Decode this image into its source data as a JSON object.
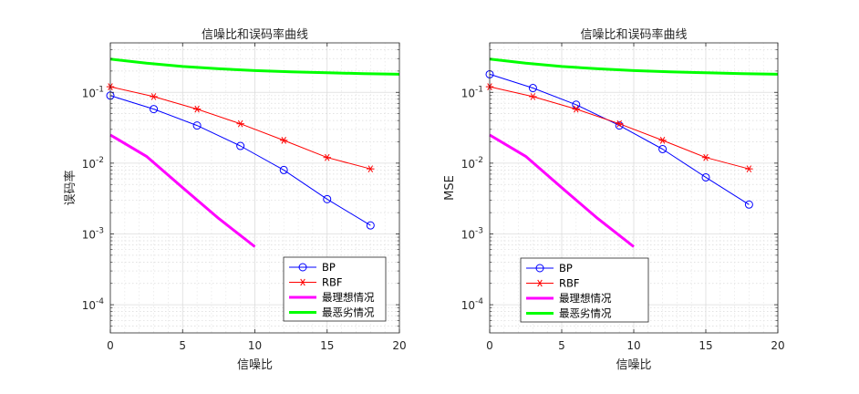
{
  "figure": {
    "background": "#ffffff"
  },
  "chart_data": [
    {
      "type": "line",
      "title": "信噪比和误码率曲线",
      "xlabel": "信噪比",
      "ylabel": "误码率",
      "xlim": [
        0,
        20
      ],
      "ylim": [
        4e-05,
        0.5
      ],
      "yscale": "log",
      "grid": "on (major and minor)",
      "legend_position": "bottom-right",
      "x_ticks": [
        0,
        5,
        10,
        15,
        20
      ],
      "y_ticks": [
        {
          "value": 0.0001,
          "base": "10",
          "exp": "-4"
        },
        {
          "value": 0.001,
          "base": "10",
          "exp": "-3"
        },
        {
          "value": 0.01,
          "base": "10",
          "exp": "-2"
        },
        {
          "value": 0.1,
          "base": "10",
          "exp": "-1"
        }
      ],
      "series": [
        {
          "name": "BP",
          "color": "#0000ff",
          "marker": "circle",
          "width": 1,
          "x": [
            0,
            3,
            6,
            9,
            12,
            15,
            18
          ],
          "y": [
            0.09,
            0.058,
            0.034,
            0.0175,
            0.008,
            0.0031,
            0.00132
          ]
        },
        {
          "name": "RBF",
          "color": "#ff0000",
          "marker": "asterisk",
          "width": 1,
          "x": [
            0,
            3,
            6,
            9,
            12,
            15,
            18
          ],
          "y": [
            0.12,
            0.087,
            0.058,
            0.036,
            0.021,
            0.012,
            0.0083
          ]
        },
        {
          "name": "最理想情况",
          "color": "#ff00ff",
          "marker": "none",
          "width": 3,
          "x": [
            0,
            2.5,
            5,
            7.5,
            10
          ],
          "y": [
            0.025,
            0.0125,
            0.0045,
            0.00165,
            0.00066
          ]
        },
        {
          "name": "最恶劣情况",
          "color": "#00ff00",
          "marker": "none",
          "width": 3,
          "x": [
            0,
            2.5,
            5,
            7.5,
            10,
            12.5,
            15,
            17.5,
            20
          ],
          "y": [
            0.295,
            0.258,
            0.232,
            0.215,
            0.203,
            0.195,
            0.189,
            0.184,
            0.18
          ]
        }
      ]
    },
    {
      "type": "line",
      "title": "信噪比和误码率曲线",
      "xlabel": "信噪比",
      "ylabel": "MSE",
      "xlim": [
        0,
        20
      ],
      "ylim": [
        4e-05,
        0.5
      ],
      "yscale": "log",
      "grid": "on (major and minor)",
      "legend_position": "bottom-right",
      "x_ticks": [
        0,
        5,
        10,
        15,
        20
      ],
      "y_ticks": [
        {
          "value": 0.0001,
          "base": "10",
          "exp": "-4"
        },
        {
          "value": 0.001,
          "base": "10",
          "exp": "-3"
        },
        {
          "value": 0.01,
          "base": "10",
          "exp": "-2"
        },
        {
          "value": 0.1,
          "base": "10",
          "exp": "-1"
        }
      ],
      "series": [
        {
          "name": "BP",
          "color": "#0000ff",
          "marker": "circle",
          "width": 1,
          "x": [
            0,
            3,
            6,
            9,
            12,
            15,
            18
          ],
          "y": [
            0.18,
            0.115,
            0.067,
            0.034,
            0.0158,
            0.0063,
            0.0026
          ]
        },
        {
          "name": "RBF",
          "color": "#ff0000",
          "marker": "asterisk",
          "width": 1,
          "x": [
            0,
            3,
            6,
            9,
            12,
            15,
            18
          ],
          "y": [
            0.12,
            0.087,
            0.058,
            0.036,
            0.021,
            0.012,
            0.0083
          ]
        },
        {
          "name": "最理想情况",
          "color": "#ff00ff",
          "marker": "none",
          "width": 3,
          "x": [
            0,
            2.5,
            5,
            7.5,
            10
          ],
          "y": [
            0.025,
            0.0125,
            0.0045,
            0.00165,
            0.00066
          ]
        },
        {
          "name": "最恶劣情况",
          "color": "#00ff00",
          "marker": "none",
          "width": 3,
          "x": [
            0,
            2.5,
            5,
            7.5,
            10,
            12.5,
            15,
            17.5,
            20
          ],
          "y": [
            0.295,
            0.258,
            0.232,
            0.215,
            0.203,
            0.195,
            0.189,
            0.184,
            0.18
          ]
        }
      ]
    }
  ]
}
